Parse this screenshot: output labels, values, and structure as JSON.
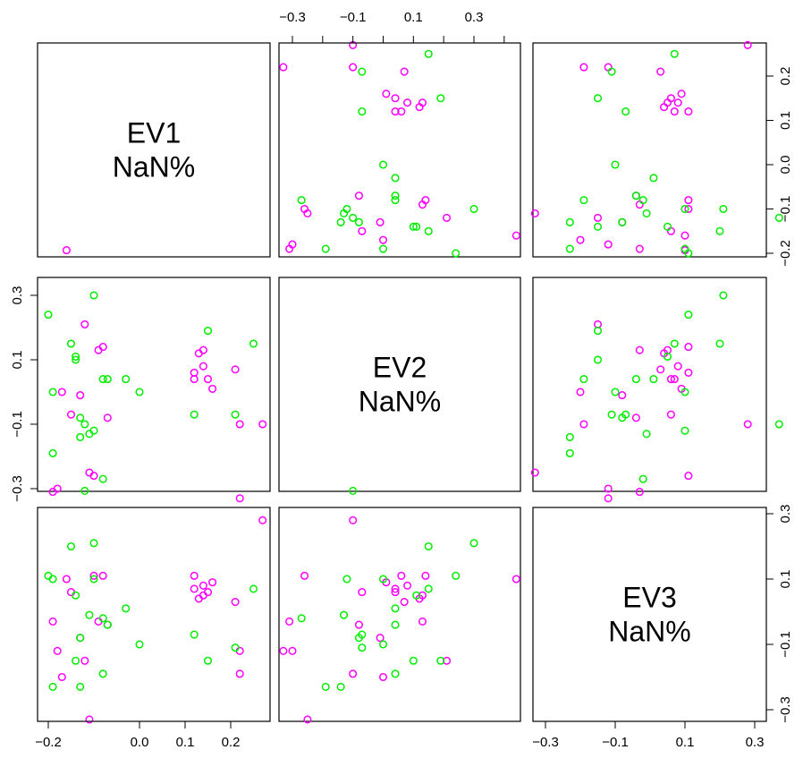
{
  "chart_data": {
    "type": "scatter-matrix",
    "variables": [
      {
        "name": "EV1",
        "label": "NaN%"
      },
      {
        "name": "EV2",
        "label": "NaN%"
      },
      {
        "name": "EV3",
        "label": "NaN%"
      }
    ],
    "axes": {
      "EV1": {
        "ticks": [
          -0.2,
          0.0,
          0.1,
          0.2
        ],
        "tick_labels": [
          "−0.2",
          "0.0",
          "0.1",
          "0.2"
        ],
        "range": [
          -0.2,
          0.27
        ]
      },
      "EV2": {
        "ticks": [
          -0.3,
          -0.1,
          0.1,
          0.3
        ],
        "tick_labels": [
          "−0.3",
          "−0.1",
          "0.1",
          "0.3"
        ],
        "range": [
          -0.32,
          0.45
        ]
      },
      "EV3": {
        "ticks": [
          -0.3,
          -0.1,
          0.1,
          0.3
        ],
        "tick_labels": [
          "−0.3",
          "−0.1",
          "0.1",
          "0.3"
        ],
        "range": [
          -0.33,
          0.31
        ]
      },
      "EV1_right": {
        "ticks": [
          -0.2,
          -0.1,
          0.0,
          0.1,
          0.2
        ],
        "tick_labels": [
          "−0.2",
          "−0.1",
          "0.0",
          "0.1",
          "0.2"
        ]
      }
    },
    "series": [
      {
        "color": "#ff00ff",
        "points": [
          {
            "EV1": -0.19,
            "EV2": -0.31,
            "EV3": -0.03
          },
          {
            "EV1": -0.18,
            "EV2": -0.3,
            "EV3": -0.12
          },
          {
            "EV1": -0.17,
            "EV2": 0.0,
            "EV3": -0.2
          },
          {
            "EV1": -0.16,
            "EV2": 0.44,
            "EV3": 0.1
          },
          {
            "EV1": -0.15,
            "EV2": -0.07,
            "EV3": 0.06
          },
          {
            "EV1": -0.13,
            "EV2": -0.01,
            "EV3": -0.08
          },
          {
            "EV1": -0.12,
            "EV2": 0.21,
            "EV3": -0.15
          },
          {
            "EV1": -0.11,
            "EV2": -0.25,
            "EV3": -0.33
          },
          {
            "EV1": -0.1,
            "EV2": -0.26,
            "EV3": 0.11
          },
          {
            "EV1": -0.09,
            "EV2": 0.13,
            "EV3": -0.03
          },
          {
            "EV1": -0.08,
            "EV2": 0.14,
            "EV3": 0.11
          },
          {
            "EV1": -0.07,
            "EV2": -0.08,
            "EV3": -0.04
          },
          {
            "EV1": 0.12,
            "EV2": 0.06,
            "EV3": 0.11
          },
          {
            "EV1": 0.12,
            "EV2": 0.04,
            "EV3": 0.07
          },
          {
            "EV1": 0.13,
            "EV2": 0.12,
            "EV3": 0.04
          },
          {
            "EV1": 0.14,
            "EV2": 0.13,
            "EV3": 0.05
          },
          {
            "EV1": 0.14,
            "EV2": 0.08,
            "EV3": 0.08
          },
          {
            "EV1": 0.15,
            "EV2": 0.04,
            "EV3": 0.06
          },
          {
            "EV1": 0.16,
            "EV2": 0.01,
            "EV3": 0.09
          },
          {
            "EV1": 0.21,
            "EV2": 0.07,
            "EV3": 0.03
          },
          {
            "EV1": 0.22,
            "EV2": -0.1,
            "EV3": -0.19
          },
          {
            "EV1": 0.22,
            "EV2": -0.33,
            "EV3": -0.12
          },
          {
            "EV1": 0.27,
            "EV2": -0.1,
            "EV3": 0.28
          }
        ]
      },
      {
        "color": "#00ee00",
        "points": [
          {
            "EV1": -0.2,
            "EV2": 0.24,
            "EV3": 0.11
          },
          {
            "EV1": -0.19,
            "EV2": 0.0,
            "EV3": 0.1
          },
          {
            "EV1": -0.19,
            "EV2": -0.19,
            "EV3": -0.23
          },
          {
            "EV1": -0.15,
            "EV2": 0.15,
            "EV3": 0.2
          },
          {
            "EV1": -0.14,
            "EV2": 0.11,
            "EV3": 0.05
          },
          {
            "EV1": -0.14,
            "EV2": 0.1,
            "EV3": -0.15
          },
          {
            "EV1": -0.13,
            "EV2": -0.08,
            "EV3": -0.08
          },
          {
            "EV1": -0.13,
            "EV2": -0.14,
            "EV3": -0.23
          },
          {
            "EV1": -0.12,
            "EV2": -0.1,
            "EV3": 0.37
          },
          {
            "EV1": -0.11,
            "EV2": -0.13,
            "EV3": -0.01
          },
          {
            "EV1": -0.1,
            "EV2": -0.12,
            "EV3": 0.1
          },
          {
            "EV1": -0.1,
            "EV2": 0.3,
            "EV3": 0.21
          },
          {
            "EV1": -0.08,
            "EV2": -0.27,
            "EV3": -0.02
          },
          {
            "EV1": -0.08,
            "EV2": 0.04,
            "EV3": -0.19
          },
          {
            "EV1": -0.07,
            "EV2": 0.04,
            "EV3": -0.04
          },
          {
            "EV1": -0.03,
            "EV2": 0.04,
            "EV3": 0.01
          },
          {
            "EV1": 0.0,
            "EV2": 0.0,
            "EV3": -0.1
          },
          {
            "EV1": 0.12,
            "EV2": -0.07,
            "EV3": -0.07
          },
          {
            "EV1": 0.15,
            "EV2": 0.19,
            "EV3": -0.15
          },
          {
            "EV1": 0.21,
            "EV2": -0.07,
            "EV3": -0.11
          },
          {
            "EV1": 0.25,
            "EV2": 0.15,
            "EV3": 0.07
          }
        ]
      }
    ],
    "grid": false,
    "legend": "none"
  }
}
